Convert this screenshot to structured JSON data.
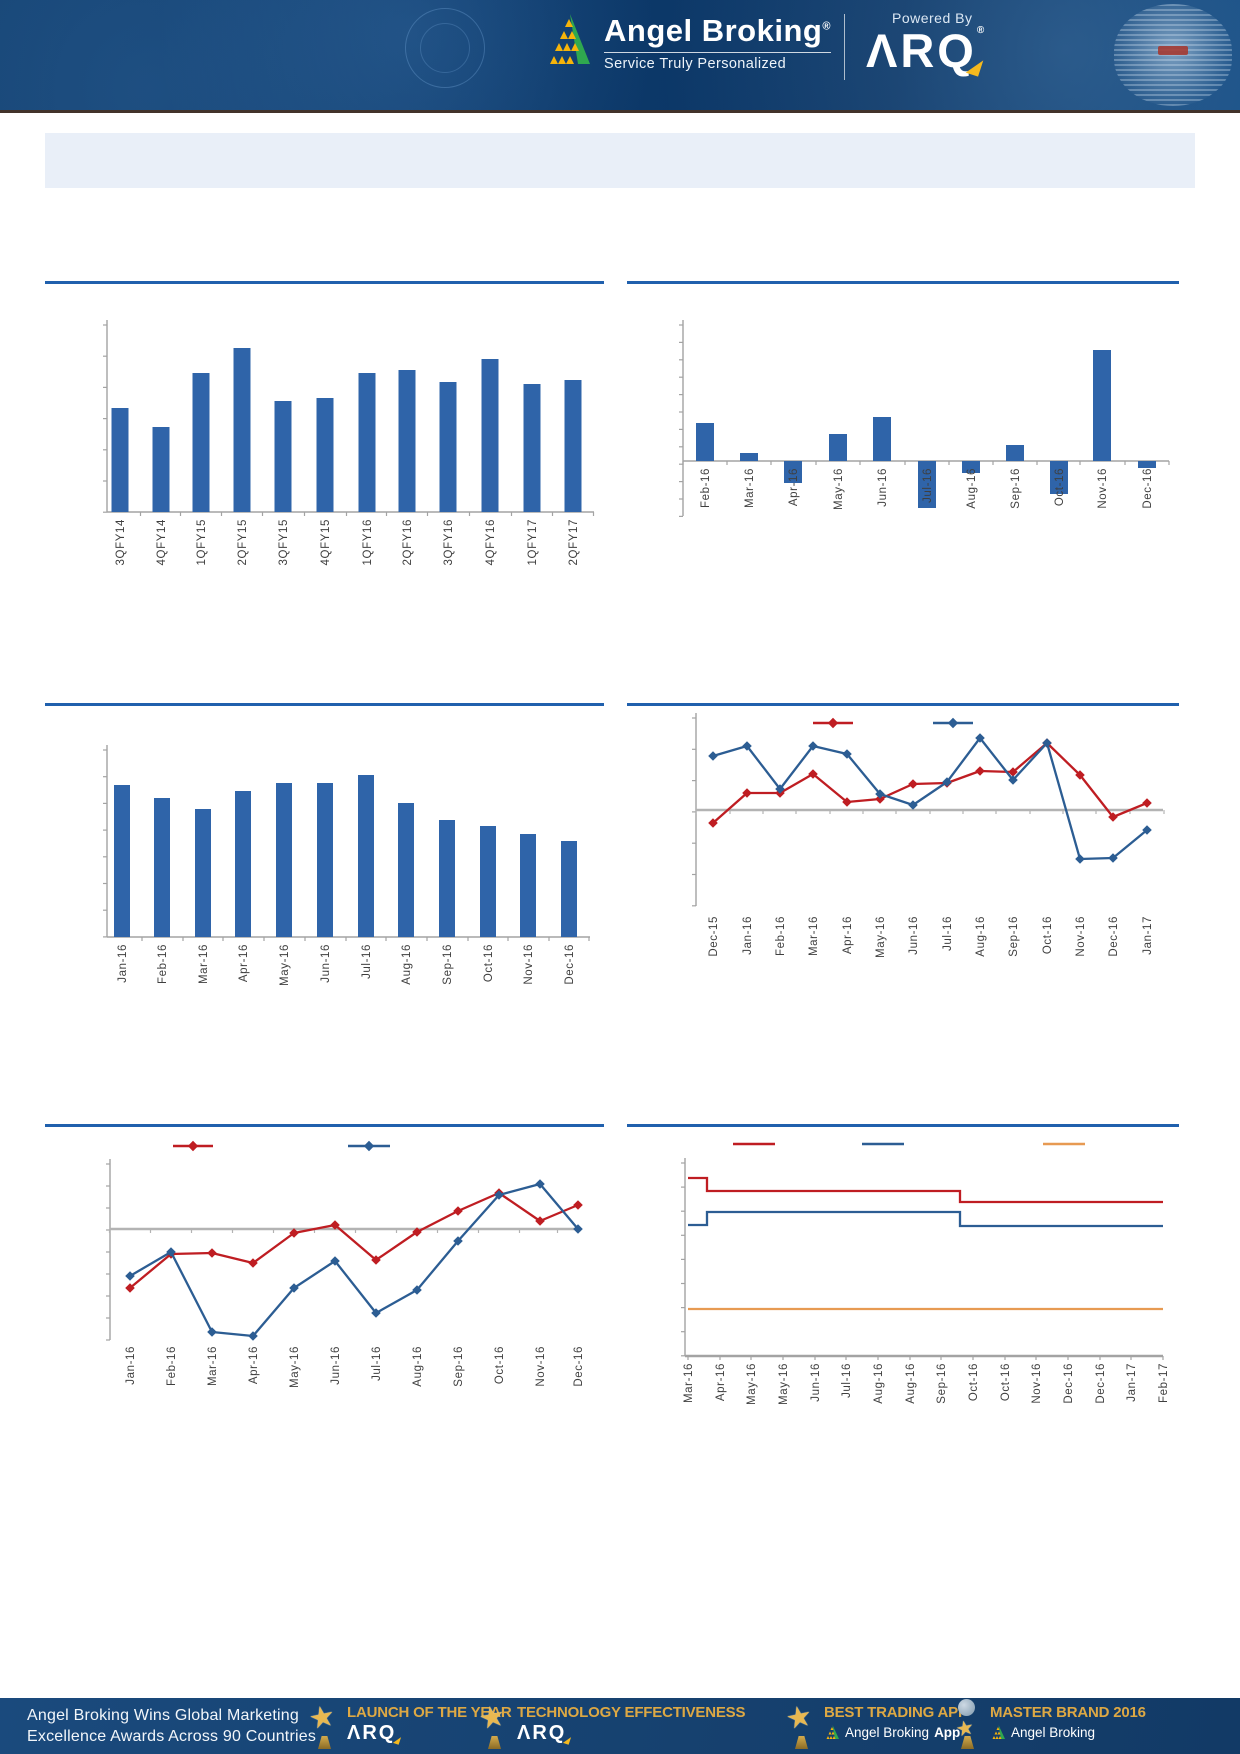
{
  "header": {
    "brand": "Angel Broking",
    "brand_reg": "®",
    "tagline": "Service Truly Personalized",
    "powered_by": "Powered By",
    "arq": "ΛRQ",
    "arq_reg": "®"
  },
  "icons": {
    "trophy": "★"
  },
  "colors": {
    "rule_blue": "#2060ad",
    "bar_blue": "#2f64a9",
    "line_red": "#bf1d22",
    "line_blue": "#2c5d93",
    "line_orange": "#e79a52",
    "header_navy": "#0d3a6b",
    "footer_navy": "#17497e",
    "banner_bg": "#e9eff8",
    "footer_gold": "#dda844"
  },
  "chart_data": [
    {
      "id": "quarterly-bars",
      "type": "bar",
      "title": "",
      "units": "relative (y-axis labels not shown)",
      "categories": [
        "3QFY14",
        "4QFY14",
        "1QFY15",
        "2QFY15",
        "3QFY15",
        "4QFY15",
        "1QFY16",
        "2QFY16",
        "3QFY16",
        "4QFY16",
        "1QFY17",
        "2QFY17"
      ],
      "values": [
        104,
        85,
        139,
        164,
        111,
        114,
        139,
        142,
        130,
        153,
        128,
        132
      ],
      "bar_color": "#2f64a9",
      "xlabel": "",
      "ylabel": "",
      "ylim": [
        0,
        187
      ]
    },
    {
      "id": "monthly-change-bars",
      "type": "bar",
      "title": "",
      "units": "relative (y-axis labels not shown)",
      "categories": [
        "Feb-16",
        "Mar-16",
        "Apr-16",
        "May-16",
        "Jun-16",
        "Jul-16",
        "Aug-16",
        "Sep-16",
        "Oct-16",
        "Nov-16",
        "Dec-16"
      ],
      "values": [
        38,
        8,
        -22,
        27,
        44,
        -47,
        -12,
        16,
        -33,
        111,
        -7
      ],
      "bar_color": "#2f64a9",
      "xlabel": "",
      "ylabel": "",
      "ylim": [
        -55,
        136
      ]
    },
    {
      "id": "monthly-bars",
      "type": "bar",
      "title": "",
      "units": "relative (y-axis labels not shown)",
      "categories": [
        "Jan-16",
        "Feb-16",
        "Mar-16",
        "Apr-16",
        "May-16",
        "Jun-16",
        "Jul-16",
        "Aug-16",
        "Sep-16",
        "Oct-16",
        "Nov-16",
        "Dec-16"
      ],
      "values": [
        152,
        139,
        128,
        146,
        154,
        154,
        162,
        134,
        117,
        111,
        103,
        96
      ],
      "bar_color": "#2f64a9",
      "xlabel": "",
      "ylabel": "",
      "ylim": [
        0,
        187
      ]
    },
    {
      "id": "two-line-dec15-jan17",
      "type": "line",
      "title": "",
      "units": "relative (y-axis labels not shown)",
      "categories": [
        "Dec-15",
        "Jan-16",
        "Feb-16",
        "Mar-16",
        "Apr-16",
        "May-16",
        "Jun-16",
        "Jul-16",
        "Aug-16",
        "Sep-16",
        "Oct-16",
        "Nov-16",
        "Dec-16",
        "Jan-17"
      ],
      "series": [
        {
          "name": "",
          "color": "#bf1d22",
          "values": [
            -13,
            17,
            17,
            36,
            8,
            11,
            26,
            27,
            39,
            38,
            67,
            35,
            -7,
            7
          ]
        },
        {
          "name": "",
          "color": "#2c5d93",
          "values": [
            54,
            64,
            21,
            64,
            56,
            16,
            5,
            28,
            72,
            30,
            67,
            -49,
            -48,
            -20
          ]
        }
      ],
      "legend": [
        {
          "label": "",
          "color": "#bf1d22"
        },
        {
          "label": "",
          "color": "#2c5d93"
        }
      ],
      "legend_position": "top",
      "xlabel": "",
      "ylabel": "",
      "ylim": [
        -96,
        92
      ]
    },
    {
      "id": "two-line-jan16-dec16",
      "type": "line",
      "title": "",
      "units": "relative (y-axis labels not shown)",
      "categories": [
        "Jan-16",
        "Feb-16",
        "Mar-16",
        "Apr-16",
        "May-16",
        "Jun-16",
        "Jul-16",
        "Aug-16",
        "Sep-16",
        "Oct-16",
        "Nov-16",
        "Dec-16"
      ],
      "series": [
        {
          "name": "",
          "color": "#bf1d22",
          "values": [
            -59,
            -25,
            -24,
            -34,
            -4,
            4,
            -31,
            -3,
            18,
            36,
            8,
            24
          ]
        },
        {
          "name": "",
          "color": "#2c5d93",
          "values": [
            -47,
            -23,
            -103,
            -107,
            -59,
            -32,
            -84,
            -61,
            -12,
            34,
            45,
            0
          ]
        }
      ],
      "legend": [
        {
          "label": "",
          "color": "#bf1d22"
        },
        {
          "label": "",
          "color": "#2c5d93"
        }
      ],
      "legend_position": "top",
      "xlabel": "",
      "ylabel": "",
      "ylim": [
        -111,
        65
      ]
    },
    {
      "id": "three-step-lines",
      "type": "step",
      "title": "",
      "units": "relative (y-axis labels not shown)",
      "categories": [
        "Mar-16",
        "Apr-16",
        "May-16",
        "May-16",
        "Jun-16",
        "Jul-16",
        "Aug-16",
        "Aug-16",
        "Sep-16",
        "Oct-16",
        "Oct-16",
        "Nov-16",
        "Dec-16",
        "Dec-16",
        "Jan-17",
        "Feb-17"
      ],
      "series": [
        {
          "name": "",
          "color": "#bf1d22",
          "values": [
            178,
            165,
            165,
            165,
            165,
            165,
            165,
            165,
            165,
            154,
            154,
            154,
            154,
            154,
            154,
            154
          ]
        },
        {
          "name": "",
          "color": "#2c5d93",
          "values": [
            131,
            144,
            144,
            144,
            144,
            144,
            144,
            144,
            144,
            130,
            130,
            130,
            130,
            130,
            130,
            130
          ]
        },
        {
          "name": "",
          "color": "#e79a52",
          "values": [
            47,
            47,
            47,
            47,
            47,
            47,
            47,
            47,
            47,
            47,
            47,
            47,
            47,
            47,
            47,
            47
          ]
        }
      ],
      "legend": [
        {
          "label": "",
          "color": "#bf1d22"
        },
        {
          "label": "",
          "color": "#2c5d93"
        },
        {
          "label": "",
          "color": "#e79a52"
        }
      ],
      "legend_position": "top",
      "xlabel": "",
      "ylabel": "",
      "ylim": [
        0,
        193
      ]
    }
  ],
  "footer": {
    "headline": [
      "Angel Broking Wins Global Marketing",
      "Excellence Awards Across 90 Countries"
    ],
    "awards": [
      {
        "title": "LAUNCH OF THE YEAR",
        "brand": "ΛRQ",
        "brand_bold": "",
        "style": "arq"
      },
      {
        "title": "TECHNOLOGY EFFECTIVENESS",
        "brand": "ΛRQ",
        "brand_bold": "",
        "style": "arq"
      },
      {
        "title": "BEST TRADING APP",
        "brand": "Angel Broking",
        "brand_bold": "App",
        "style": "angel"
      },
      {
        "title": "MASTER BRAND 2016",
        "brand": "Angel Broking",
        "brand_bold": "",
        "style": "angel"
      }
    ]
  }
}
